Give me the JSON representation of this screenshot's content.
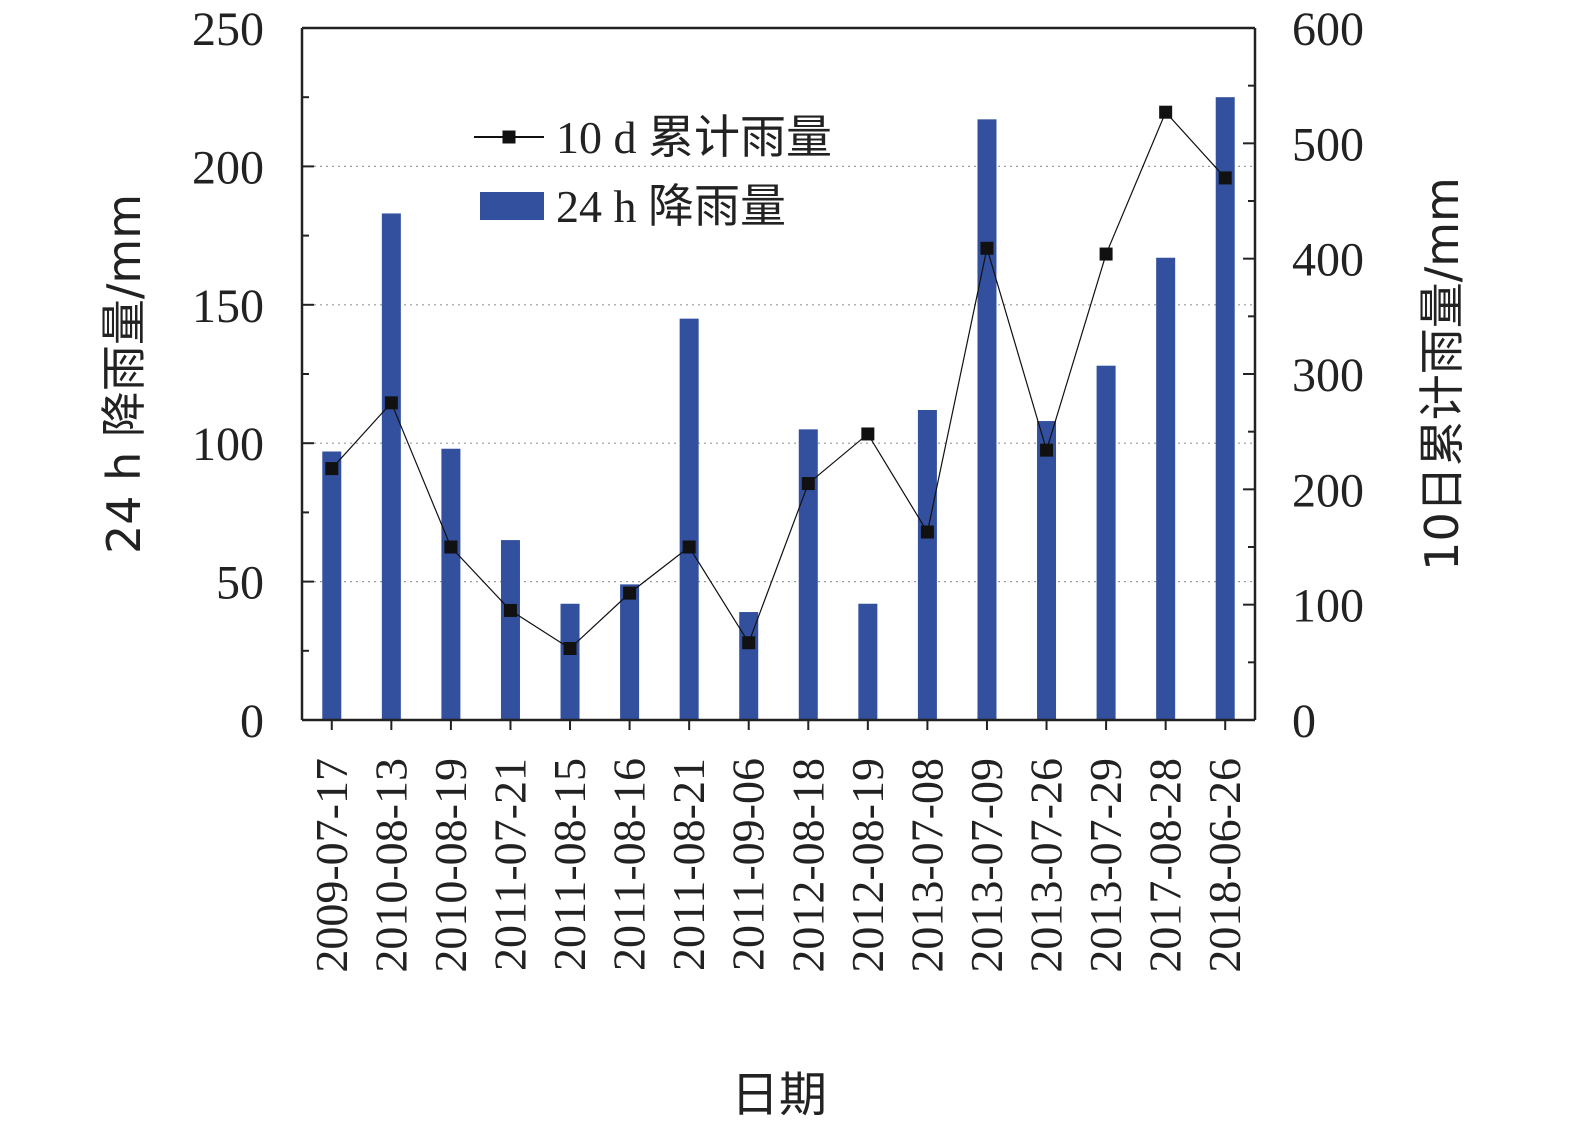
{
  "chart_data": {
    "type": "bar",
    "categories": [
      "2009-07-17",
      "2010-08-13",
      "2010-08-19",
      "2011-07-21",
      "2011-08-15",
      "2011-08-16",
      "2011-08-21",
      "2011-09-06",
      "2012-08-18",
      "2012-08-19",
      "2013-07-08",
      "2013-07-09",
      "2013-07-26",
      "2013-07-29",
      "2017-08-28",
      "2018-06-26"
    ],
    "series": [
      {
        "name": "24 h 降雨量",
        "type": "bar",
        "axis": "left",
        "values": [
          97,
          183,
          98,
          65,
          42,
          49,
          145,
          39,
          105,
          42,
          112,
          217,
          108,
          128,
          167,
          225
        ]
      },
      {
        "name": "10 d 累计雨量",
        "type": "line",
        "axis": "right",
        "values": [
          218,
          275,
          150,
          95,
          62,
          110,
          150,
          67,
          205,
          248,
          163,
          409,
          234,
          404,
          527,
          470
        ]
      }
    ],
    "title": "",
    "xlabel": "日期",
    "ylabel": "24 h 降雨量/mm",
    "y2label": "10日累计雨量/mm",
    "ylim": [
      0,
      250
    ],
    "y2lim": [
      0,
      600
    ],
    "yticks": [
      "0",
      "50",
      "100",
      "150",
      "200",
      "250"
    ],
    "y2ticks": [
      "0",
      "100",
      "200",
      "300",
      "400",
      "500",
      "600"
    ],
    "grid": true,
    "legend_position": "top-left",
    "colors": {
      "bar": "#33509e",
      "line": "#111111",
      "grid": "#9a9a9a",
      "axis": "#222222"
    }
  }
}
